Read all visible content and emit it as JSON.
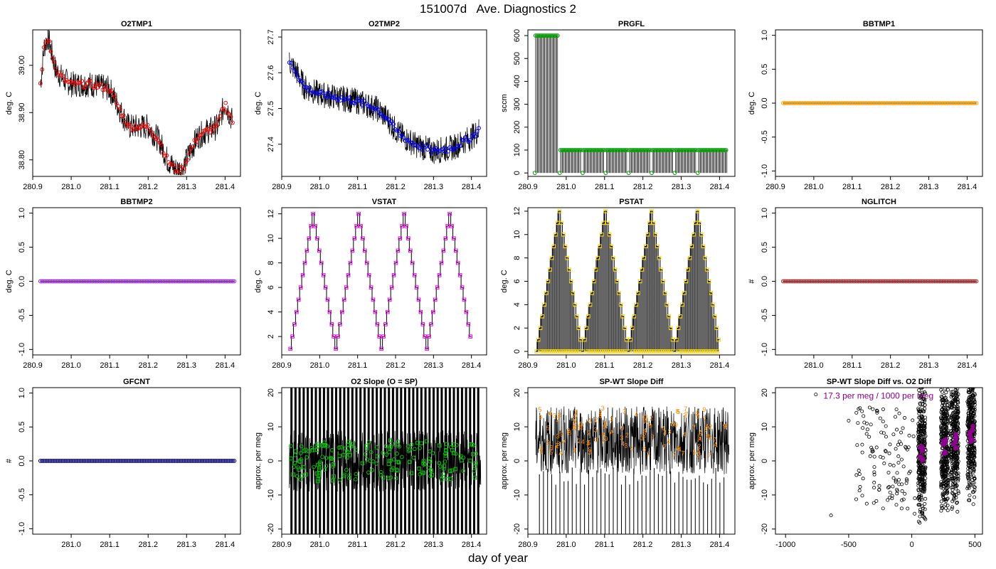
{
  "page": {
    "title": "151007d   Ave. Diagnostics 2",
    "xlabel": "day of year"
  },
  "chart_data": [
    {
      "id": "O2TMP1",
      "type": "line",
      "title": "O2TMP1",
      "ylabel": "deg. C",
      "xlim": [
        280.9,
        281.44
      ],
      "ylim": [
        38.765,
        39.075
      ],
      "xticks": [
        280.9,
        281.0,
        281.1,
        281.2,
        281.3,
        281.4
      ],
      "xticklabels": [
        "280.9",
        "281.0",
        "281.1",
        "281.2",
        "281.3",
        "281.4"
      ],
      "yticks": [
        38.8,
        38.9,
        39.0
      ],
      "yticklabels": [
        "38.80",
        "38.90",
        "39.00"
      ],
      "raw_color": "#000000",
      "marker_color": "#ff0000",
      "marker": "circle",
      "series": [
        {
          "x": [
            280.92,
            280.93,
            280.94,
            280.96,
            280.98,
            281.0,
            281.05,
            281.1,
            281.13,
            281.15,
            281.18,
            281.2,
            281.23,
            281.25,
            281.27,
            281.29,
            281.31,
            281.33,
            281.35,
            281.38,
            281.4,
            281.42
          ],
          "values": [
            38.96,
            39.04,
            39.06,
            38.99,
            38.97,
            38.96,
            38.96,
            38.95,
            38.9,
            38.87,
            38.87,
            38.87,
            38.84,
            38.8,
            38.78,
            38.78,
            38.82,
            38.85,
            38.86,
            38.87,
            38.92,
            38.88
          ]
        }
      ]
    },
    {
      "id": "O2TMP2",
      "type": "line",
      "title": "O2TMP2",
      "ylabel": "deg. C",
      "xlim": [
        280.9,
        281.44
      ],
      "ylim": [
        27.31,
        27.72
      ],
      "xticks": [
        280.9,
        281.0,
        281.1,
        281.2,
        281.3,
        281.4
      ],
      "xticklabels": [
        "280.9",
        "281.0",
        "281.1",
        "281.2",
        "281.3",
        "281.4"
      ],
      "yticks": [
        27.4,
        27.5,
        27.6,
        27.7
      ],
      "yticklabels": [
        "27.4",
        "27.5",
        "27.6",
        "27.7"
      ],
      "raw_color": "#000000",
      "marker_color": "#0000ff",
      "marker": "circle",
      "series": [
        {
          "x": [
            280.92,
            280.94,
            280.96,
            281.0,
            281.05,
            281.1,
            281.15,
            281.18,
            281.2,
            281.22,
            281.25,
            281.3,
            281.35,
            281.4,
            281.42
          ],
          "values": [
            27.63,
            27.6,
            27.56,
            27.54,
            27.53,
            27.52,
            27.5,
            27.47,
            27.44,
            27.42,
            27.4,
            27.38,
            27.39,
            27.42,
            27.44
          ]
        }
      ]
    },
    {
      "id": "PRGFL",
      "type": "line",
      "title": "PRGFL",
      "ylabel": "sccm",
      "xlim": [
        280.9,
        281.44
      ],
      "ylim": [
        -15,
        625
      ],
      "xticks": [
        280.9,
        281.0,
        281.1,
        281.2,
        281.3,
        281.4
      ],
      "xticklabels": [
        "280.9",
        "281.0",
        "281.1",
        "281.2",
        "281.3",
        "281.4"
      ],
      "yticks": [
        0,
        100,
        200,
        300,
        400,
        500,
        600
      ],
      "yticklabels": [
        "0",
        "100",
        "200",
        "300",
        "400",
        "500",
        "600"
      ],
      "raw_color": "#000000",
      "marker_color": "#00a000",
      "marker": "circle",
      "segments": [
        {
          "x0": 280.92,
          "x1": 280.98,
          "value": 600
        },
        {
          "x0": 280.985,
          "x1": 281.04,
          "value": 100
        },
        {
          "x0": 281.045,
          "x1": 281.1,
          "value": 100
        },
        {
          "x0": 281.105,
          "x1": 281.16,
          "value": 100
        },
        {
          "x0": 281.165,
          "x1": 281.22,
          "value": 100
        },
        {
          "x0": 281.225,
          "x1": 281.28,
          "value": 100
        },
        {
          "x0": 281.285,
          "x1": 281.34,
          "value": 100
        },
        {
          "x0": 281.345,
          "x1": 281.42,
          "value": 100
        }
      ]
    },
    {
      "id": "BBTMP1",
      "type": "line",
      "title": "BBTMP1",
      "ylabel": "deg. C",
      "xlim": [
        280.9,
        281.44
      ],
      "ylim": [
        -1.08,
        1.08
      ],
      "xticks": [
        280.9,
        281.0,
        281.1,
        281.2,
        281.3,
        281.4
      ],
      "xticklabels": [
        "280.9",
        "281.0",
        "281.1",
        "281.2",
        "281.3",
        "281.4"
      ],
      "yticks": [
        -1,
        -0.5,
        0,
        0.5,
        1
      ],
      "yticklabels": [
        "-1.0",
        "-0.5",
        "0.0",
        "0.5",
        "1.0"
      ],
      "raw_color": "#000000",
      "marker_color": "#ffa500",
      "marker": "circle",
      "constant": 0
    },
    {
      "id": "BBTMP2",
      "type": "line",
      "title": "BBTMP2",
      "ylabel": "deg. C",
      "xlim": [
        280.9,
        281.44
      ],
      "ylim": [
        -1.08,
        1.08
      ],
      "xticks": [
        280.9,
        281.0,
        281.1,
        281.2,
        281.3,
        281.4
      ],
      "xticklabels": [
        "280.9",
        "281.0",
        "281.1",
        "281.2",
        "281.3",
        "281.4"
      ],
      "yticks": [
        -1,
        -0.5,
        0,
        0.5,
        1
      ],
      "yticklabels": [
        "-1.0",
        "-0.5",
        "0.0",
        "0.5",
        "1.0"
      ],
      "raw_color": "#000000",
      "marker_color": "#a020f0",
      "marker": "circle",
      "constant": 0
    },
    {
      "id": "VSTAT",
      "type": "line",
      "title": "VSTAT",
      "ylabel": "deg. C",
      "xlim": [
        280.9,
        281.44
      ],
      "ylim": [
        0.5,
        12.5
      ],
      "xticks": [
        280.9,
        281.0,
        281.1,
        281.2,
        281.3,
        281.4
      ],
      "xticklabels": [
        "280.9",
        "281.0",
        "281.1",
        "281.2",
        "281.3",
        "281.4"
      ],
      "yticks": [
        2,
        4,
        6,
        8,
        10,
        12
      ],
      "yticklabels": [
        "2",
        "4",
        "6",
        "8",
        "10",
        "12"
      ],
      "raw_color": "#000000",
      "marker_color": "#ff00ff",
      "marker": "square",
      "cycle": {
        "start": 280.92,
        "period": 0.12,
        "min": 1,
        "max": 12,
        "cycles": 4
      }
    },
    {
      "id": "PSTAT",
      "type": "line",
      "title": "PSTAT",
      "ylabel": "deg. C",
      "xlim": [
        280.9,
        281.44
      ],
      "ylim": [
        -0.3,
        12.3
      ],
      "xticks": [
        280.9,
        281.0,
        281.1,
        281.2,
        281.3,
        281.4
      ],
      "xticklabels": [
        "280.9",
        "281.0",
        "281.1",
        "281.2",
        "281.3",
        "281.4"
      ],
      "yticks": [
        0,
        2,
        4,
        6,
        8,
        10,
        12
      ],
      "yticklabels": [
        "0",
        "2",
        "4",
        "6",
        "8",
        "10",
        "12"
      ],
      "raw_color": "#000000",
      "marker_color": "#ffd700",
      "marker": "square",
      "cycle": {
        "start": 280.92,
        "period": 0.12,
        "min": 0,
        "max": 12,
        "cycles": 4
      }
    },
    {
      "id": "NGLITCH",
      "type": "line",
      "title": "NGLITCH",
      "ylabel": "#",
      "xlim": [
        280.9,
        281.44
      ],
      "ylim": [
        -1.08,
        1.08
      ],
      "xticks": [
        281.0,
        281.1,
        281.2,
        281.3,
        281.4
      ],
      "xticklabels": [
        "281.0",
        "281.1",
        "281.2",
        "281.3",
        "281.4"
      ],
      "yticks": [
        -1,
        -0.5,
        0,
        0.5,
        1
      ],
      "yticklabels": [
        "-1.0",
        "-0.5",
        "0.0",
        "0.5",
        "1.0"
      ],
      "raw_color": "#000000",
      "marker_color": "#b22222",
      "marker": "circle",
      "constant": 0
    },
    {
      "id": "GFCNT",
      "type": "line",
      "title": "GFCNT",
      "ylabel": "#",
      "xlim": [
        280.9,
        281.44
      ],
      "ylim": [
        -1.08,
        1.08
      ],
      "xticks": [
        281.0,
        281.1,
        281.2,
        281.3,
        281.4
      ],
      "xticklabels": [
        "281.0",
        "281.1",
        "281.2",
        "281.3",
        "281.4"
      ],
      "yticks": [
        -1,
        -0.5,
        0,
        0.5,
        1
      ],
      "yticklabels": [
        "-1.0",
        "-0.5",
        "0.0",
        "0.5",
        "1.0"
      ],
      "raw_color": "#000000",
      "marker_color": "#00008b",
      "marker": "circle",
      "constant": 0
    },
    {
      "id": "O2SLOPE",
      "type": "line",
      "title": "O2 Slope (O = SP)",
      "ylabel": "approx. per meg",
      "xlim": [
        280.9,
        281.44
      ],
      "ylim": [
        -21.5,
        21.5
      ],
      "xticks": [
        280.9,
        281.0,
        281.1,
        281.2,
        281.3,
        281.4
      ],
      "xticklabels": [
        "280.9",
        "281.0",
        "281.1",
        "281.2",
        "281.3",
        "281.4"
      ],
      "yticks": [
        -20,
        -10,
        0,
        10,
        20
      ],
      "yticklabels": [
        "-20",
        "-10",
        "0",
        "10",
        "20"
      ],
      "raw_color": "#000000",
      "marker_color": "#00c000",
      "marker": "mixed",
      "noise_amplitude": 9,
      "marker_spread": 6
    },
    {
      "id": "SPWTDIFF",
      "type": "line",
      "title": "SP-WT Slope Diff",
      "ylabel": "approx. per meg",
      "xlim": [
        280.9,
        281.44
      ],
      "ylim": [
        -21.5,
        21.5
      ],
      "xticks": [
        280.9,
        281.0,
        281.1,
        281.2,
        281.3,
        281.4
      ],
      "xticklabels": [
        "280.9",
        "281.0",
        "281.1",
        "281.2",
        "281.3",
        "281.4"
      ],
      "yticks": [
        -20,
        -10,
        0,
        10,
        20
      ],
      "yticklabels": [
        "-20",
        "-10",
        "0",
        "10",
        "20"
      ],
      "raw_color": "#000000",
      "marker_color": "#ff8c00",
      "marker": "digits",
      "noise_center": 6,
      "noise_amplitude": 10
    },
    {
      "id": "SPWTvsO2",
      "type": "scatter",
      "title": "SP-WT Slope Diff vs. O2 Diff",
      "ylabel": "approx. per meg",
      "xlim": [
        -1080,
        560
      ],
      "ylim": [
        -21.5,
        21.5
      ],
      "xticks": [
        -1000,
        -500,
        0,
        500
      ],
      "xticklabels": [
        "-1000",
        "-500",
        "0",
        "500"
      ],
      "yticks": [
        -20,
        -10,
        0,
        10,
        20
      ],
      "yticklabels": [
        "-20",
        "-10",
        "0",
        "10",
        "20"
      ],
      "point_color": "#000000",
      "fit_color": "#8b008b",
      "clusters": [
        {
          "x": 80,
          "y": 2
        },
        {
          "x": 260,
          "y": 4
        },
        {
          "x": 340,
          "y": 6
        },
        {
          "x": 470,
          "y": 8
        }
      ],
      "annotation": "17.3 per meg / 1000 per meg"
    }
  ]
}
